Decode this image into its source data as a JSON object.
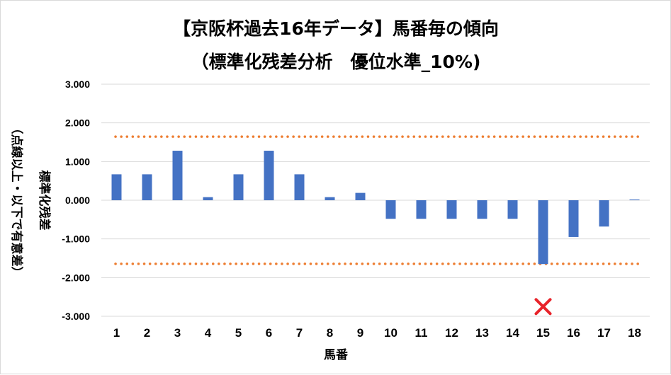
{
  "chart_data": {
    "type": "bar",
    "title_line1": "【京阪杯過去16年データ】馬番毎の傾向",
    "title_line2": "（標準化残差分析　優位水準_10%)",
    "xlabel": "馬番",
    "ylabel_line1": "標準化残差",
    "ylabel_line2": "（点線以上・以下で有意差）",
    "categories": [
      "1",
      "2",
      "3",
      "4",
      "5",
      "6",
      "7",
      "8",
      "9",
      "10",
      "11",
      "12",
      "13",
      "14",
      "15",
      "16",
      "17",
      "18"
    ],
    "values": [
      0.67,
      0.67,
      1.28,
      0.08,
      0.67,
      1.28,
      0.67,
      0.08,
      0.19,
      -0.48,
      -0.48,
      -0.48,
      -0.48,
      -0.48,
      -1.65,
      -0.95,
      -0.68,
      0.02
    ],
    "ylim": [
      -3,
      3
    ],
    "yticks": [
      "3.000",
      "2.000",
      "1.000",
      "0.000",
      "-1.000",
      "-2.000",
      "-3.000"
    ],
    "ytick_values": [
      3,
      2,
      1,
      0,
      -1,
      -2,
      -3
    ],
    "threshold_upper": 1.645,
    "threshold_lower": -1.645,
    "marker": {
      "category": "15",
      "value": -2.75,
      "symbol": "×"
    },
    "grid": true,
    "legend": "none",
    "colors": {
      "bar": "#4472c4",
      "threshold": "#ed7d31",
      "marker": "#e8232a",
      "grid": "#d9d9d9"
    }
  }
}
